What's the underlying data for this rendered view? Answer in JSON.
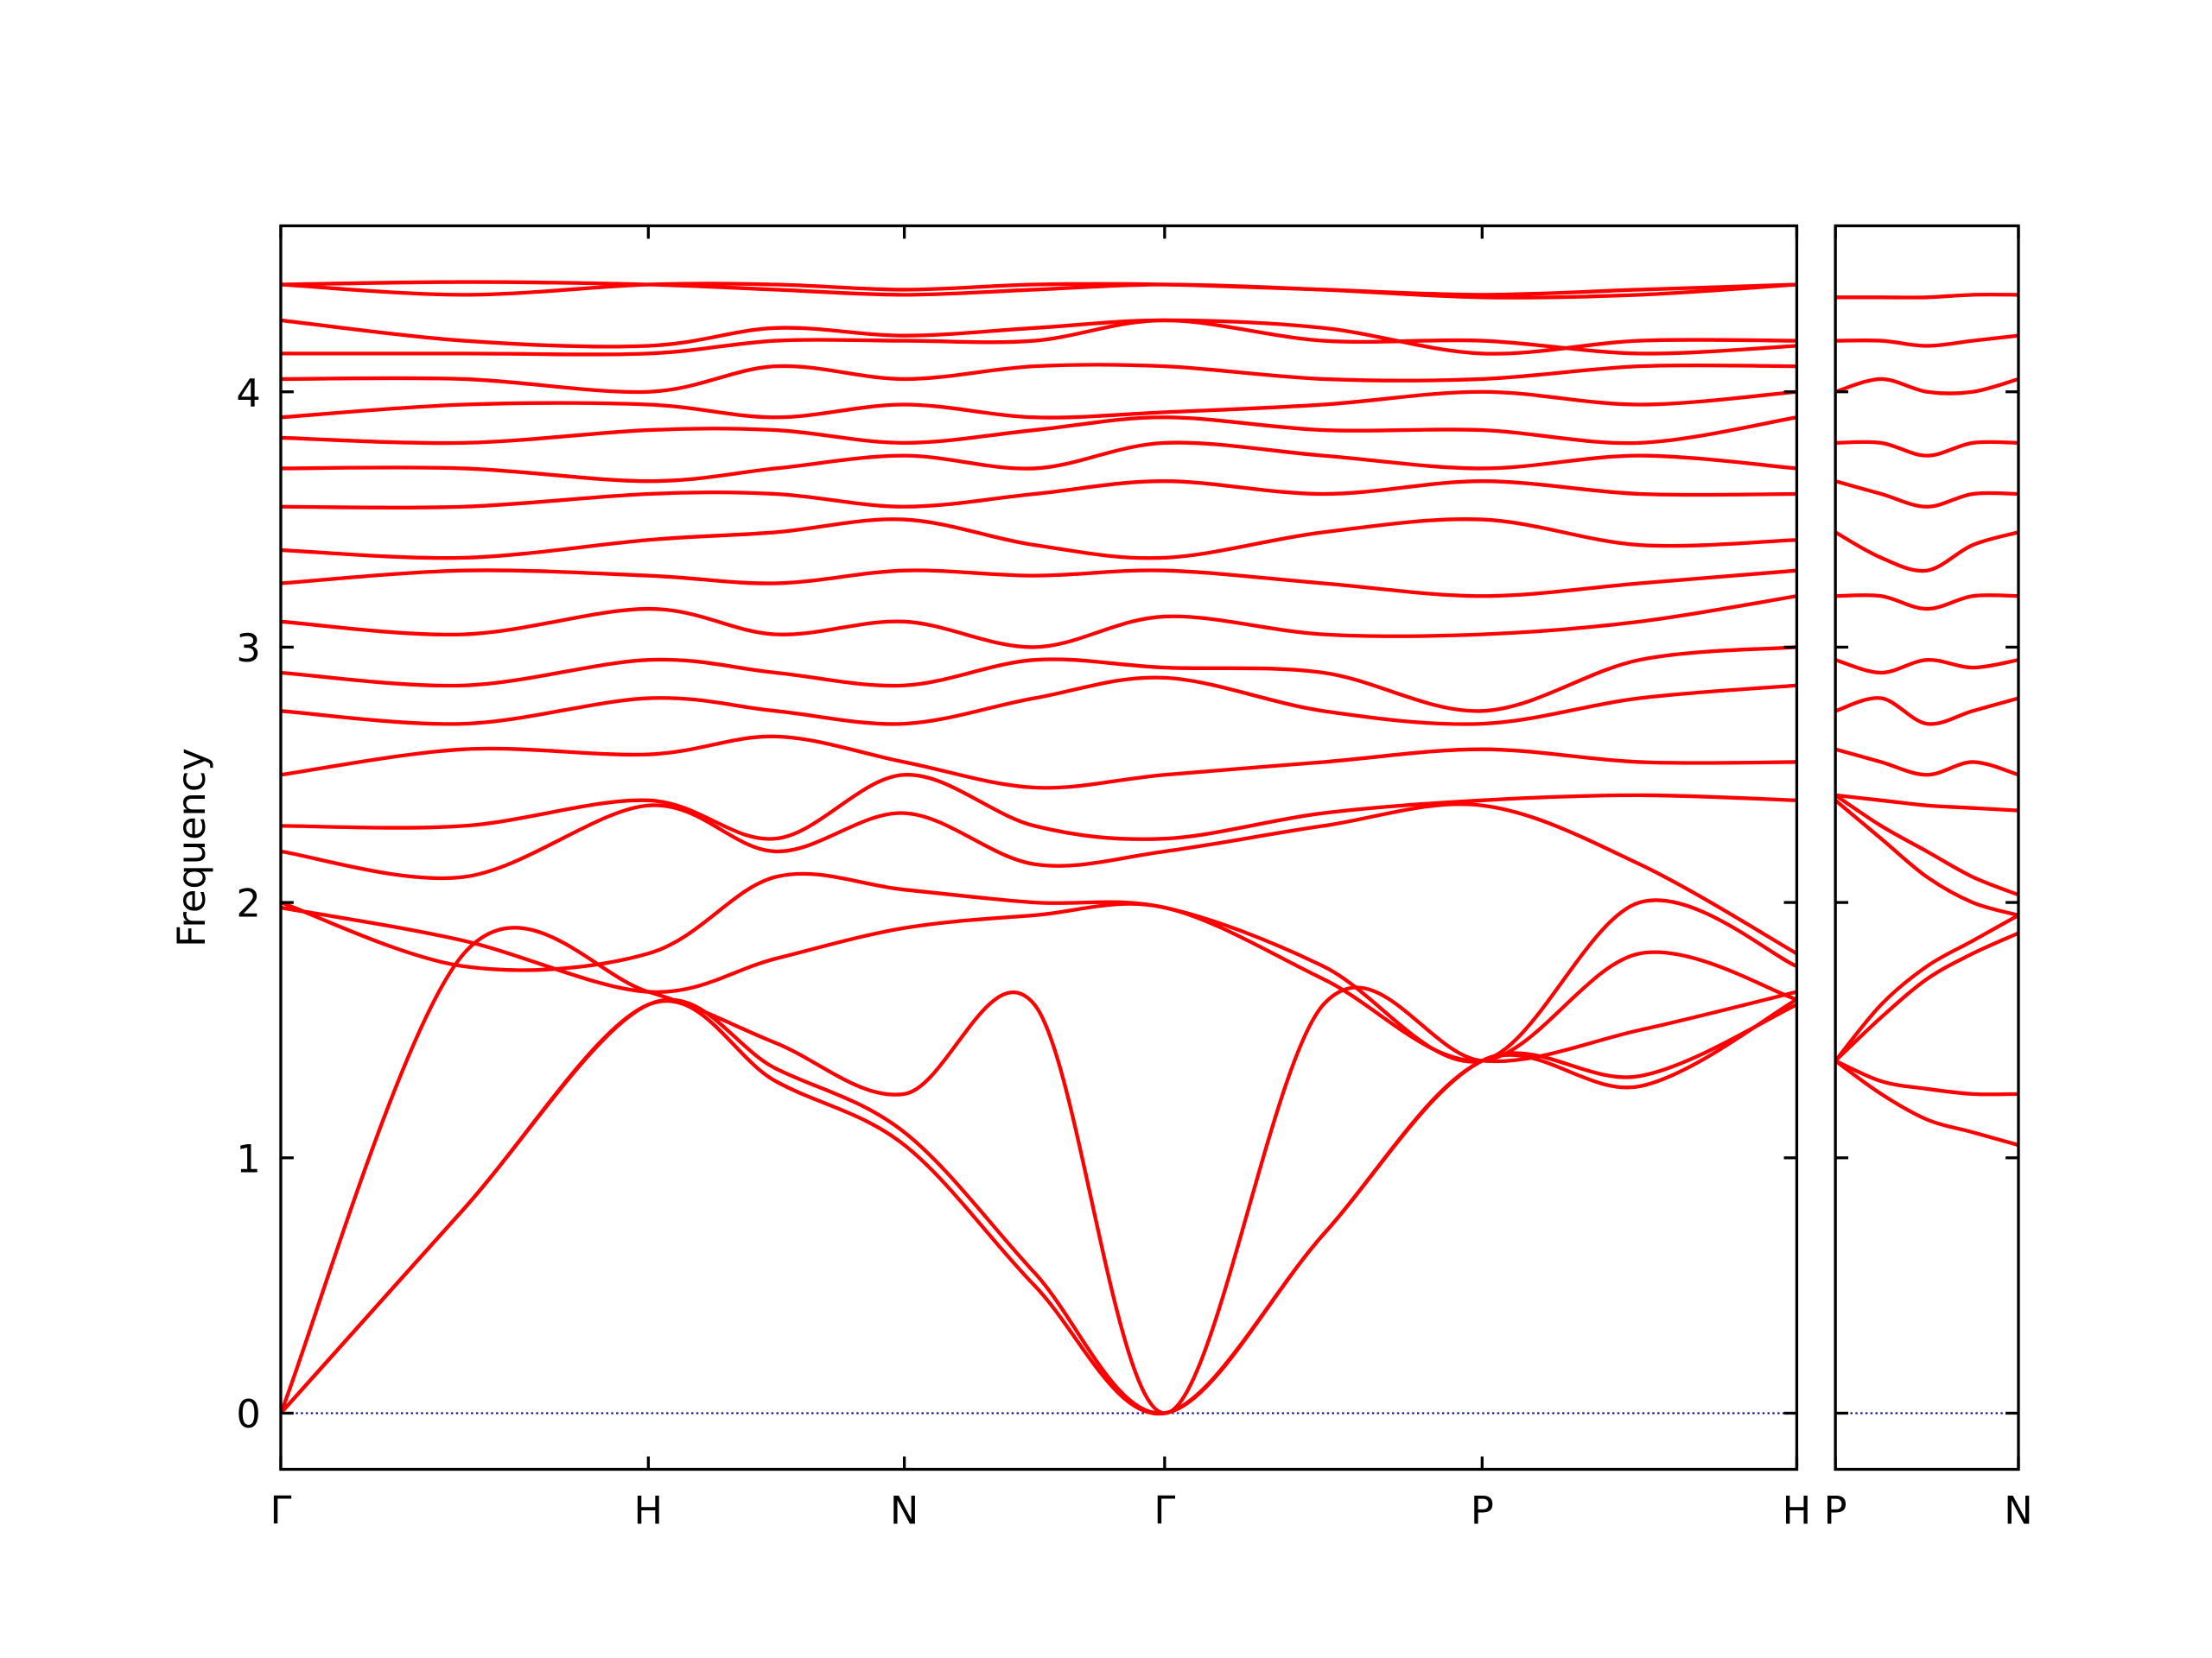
{
  "chart_data": [
    {
      "type": "line",
      "ylabel": "Frequency",
      "color": "#ff0000",
      "hline": 0,
      "hline_color": "#00008b",
      "ylim": [
        -0.22,
        4.65
      ],
      "yticks": [
        0,
        1,
        2,
        3,
        4
      ],
      "ytick_labels": true,
      "xlim": [
        0,
        1060
      ],
      "xticks": [
        {
          "value": 0,
          "label": "Γ"
        },
        {
          "value": 257,
          "label": "H"
        },
        {
          "value": 436,
          "label": "N"
        },
        {
          "value": 618,
          "label": "Γ"
        },
        {
          "value": 840,
          "label": "P"
        },
        {
          "value": 1060,
          "label": "H"
        }
      ],
      "x": [
        0,
        128,
        257,
        346,
        436,
        527,
        618,
        729,
        840,
        950,
        1060
      ],
      "series": [
        {
          "values": [
            0,
            0.8,
            1.6,
            1.3,
            1.05,
            0.5,
            0,
            0.7,
            1.38,
            1.32,
            1.6
          ]
        },
        {
          "values": [
            0,
            0.8,
            1.6,
            1.35,
            1.1,
            0.55,
            0,
            0.7,
            1.38,
            1.28,
            1.62
          ]
        },
        {
          "values": [
            0,
            1.8,
            1.65,
            1.45,
            1.25,
            1.6,
            0,
            1.6,
            1.38,
            1.5,
            1.65
          ]
        },
        {
          "values": [
            1.98,
            1.85,
            1.65,
            1.78,
            1.9,
            1.95,
            1.98,
            1.7,
            1.38,
            1.8,
            1.62
          ]
        },
        {
          "values": [
            2.0,
            1.75,
            1.8,
            2.1,
            2.05,
            2.0,
            1.98,
            1.75,
            1.38,
            2.0,
            1.75
          ]
        },
        {
          "values": [
            2.2,
            2.1,
            2.38,
            2.2,
            2.35,
            2.15,
            2.2,
            2.3,
            2.38,
            2.15,
            1.8
          ]
        },
        {
          "values": [
            2.3,
            2.3,
            2.4,
            2.25,
            2.5,
            2.3,
            2.25,
            2.35,
            2.4,
            2.42,
            2.4
          ]
        },
        {
          "values": [
            2.5,
            2.6,
            2.58,
            2.65,
            2.55,
            2.45,
            2.5,
            2.55,
            2.6,
            2.55,
            2.55
          ]
        },
        {
          "values": [
            2.75,
            2.7,
            2.8,
            2.75,
            2.7,
            2.8,
            2.88,
            2.75,
            2.7,
            2.8,
            2.85
          ]
        },
        {
          "values": [
            2.9,
            2.85,
            2.95,
            2.9,
            2.85,
            2.95,
            2.92,
            2.9,
            2.75,
            2.95,
            3.0
          ]
        },
        {
          "values": [
            3.1,
            3.05,
            3.15,
            3.05,
            3.1,
            3.0,
            3.12,
            3.05,
            3.05,
            3.1,
            3.2
          ]
        },
        {
          "values": [
            3.25,
            3.3,
            3.28,
            3.25,
            3.3,
            3.28,
            3.3,
            3.25,
            3.2,
            3.25,
            3.3
          ]
        },
        {
          "values": [
            3.38,
            3.35,
            3.42,
            3.45,
            3.5,
            3.4,
            3.35,
            3.45,
            3.5,
            3.4,
            3.42
          ]
        },
        {
          "values": [
            3.55,
            3.55,
            3.6,
            3.6,
            3.55,
            3.6,
            3.65,
            3.6,
            3.65,
            3.6,
            3.6
          ]
        },
        {
          "values": [
            3.7,
            3.7,
            3.65,
            3.7,
            3.75,
            3.7,
            3.8,
            3.75,
            3.7,
            3.75,
            3.7
          ]
        },
        {
          "values": [
            3.82,
            3.8,
            3.85,
            3.85,
            3.8,
            3.85,
            3.9,
            3.85,
            3.85,
            3.8,
            3.9
          ]
        },
        {
          "values": [
            3.9,
            3.95,
            3.95,
            3.9,
            3.95,
            3.9,
            3.92,
            3.95,
            4.0,
            3.95,
            4.0
          ]
        },
        {
          "values": [
            4.05,
            4.05,
            4.0,
            4.1,
            4.05,
            4.1,
            4.1,
            4.05,
            4.05,
            4.1,
            4.1
          ]
        },
        {
          "values": [
            4.15,
            4.15,
            4.15,
            4.2,
            4.2,
            4.2,
            4.28,
            4.2,
            4.2,
            4.15,
            4.18
          ]
        },
        {
          "values": [
            4.28,
            4.2,
            4.18,
            4.25,
            4.22,
            4.25,
            4.28,
            4.25,
            4.15,
            4.2,
            4.2
          ]
        },
        {
          "values": [
            4.42,
            4.43,
            4.42,
            4.4,
            4.38,
            4.4,
            4.42,
            4.4,
            4.37,
            4.38,
            4.42
          ]
        },
        {
          "values": [
            4.42,
            4.38,
            4.42,
            4.42,
            4.4,
            4.42,
            4.42,
            4.4,
            4.38,
            4.4,
            4.42
          ]
        }
      ]
    },
    {
      "type": "line",
      "color": "#ff0000",
      "hline": 0,
      "hline_color": "#00008b",
      "ylim": [
        -0.22,
        4.65
      ],
      "yticks": [
        0,
        1,
        2,
        3,
        4
      ],
      "ytick_labels": false,
      "xlim": [
        0,
        128
      ],
      "xticks": [
        {
          "value": 0,
          "label": "P"
        },
        {
          "value": 128,
          "label": "N"
        }
      ],
      "x": [
        0,
        32,
        64,
        96,
        128
      ],
      "series": [
        {
          "values": [
            1.38,
            1.3,
            1.27,
            1.25,
            1.25
          ]
        },
        {
          "values": [
            1.38,
            1.25,
            1.15,
            1.1,
            1.05
          ]
        },
        {
          "values": [
            1.38,
            1.55,
            1.7,
            1.8,
            1.88
          ]
        },
        {
          "values": [
            1.38,
            1.6,
            1.75,
            1.85,
            1.95
          ]
        },
        {
          "values": [
            2.4,
            2.25,
            2.1,
            2.0,
            1.95
          ]
        },
        {
          "values": [
            2.42,
            2.3,
            2.2,
            2.1,
            2.03
          ]
        },
        {
          "values": [
            2.42,
            2.4,
            2.38,
            2.37,
            2.36
          ]
        },
        {
          "values": [
            2.6,
            2.55,
            2.5,
            2.55,
            2.5
          ]
        },
        {
          "values": [
            2.75,
            2.8,
            2.7,
            2.75,
            2.8
          ]
        },
        {
          "values": [
            2.95,
            2.9,
            2.95,
            2.92,
            2.95
          ]
        },
        {
          "values": [
            3.2,
            3.2,
            3.15,
            3.2,
            3.2
          ]
        },
        {
          "values": [
            3.45,
            3.35,
            3.3,
            3.4,
            3.45
          ]
        },
        {
          "values": [
            3.65,
            3.6,
            3.55,
            3.6,
            3.6
          ]
        },
        {
          "values": [
            3.8,
            3.8,
            3.75,
            3.8,
            3.8
          ]
        },
        {
          "values": [
            4.0,
            4.05,
            4.0,
            4.0,
            4.05
          ]
        },
        {
          "values": [
            4.2,
            4.2,
            4.18,
            4.2,
            4.22
          ]
        },
        {
          "values": [
            4.37,
            4.37,
            4.37,
            4.38,
            4.38
          ]
        }
      ]
    }
  ]
}
